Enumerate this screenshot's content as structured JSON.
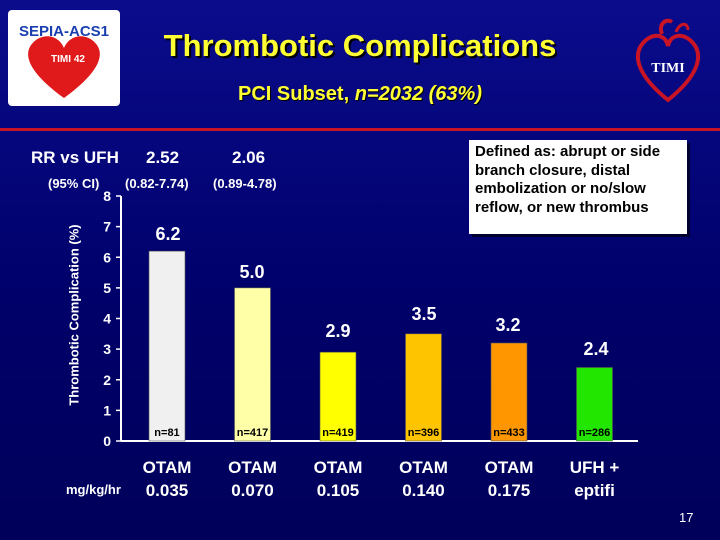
{
  "title": "Thrombotic Complications",
  "subtitle_prefix": "PCI Subset, ",
  "subtitle_n": "n=2032 (63%)",
  "logo_left": {
    "text_top": "SEPIA-ACS1",
    "text_mid": "TIMI 42",
    "icon": "heart-logo"
  },
  "logo_right": {
    "text": "TIMI",
    "icon": "heart-logo"
  },
  "rr": {
    "label": "RR vs UFH",
    "values": [
      "2.52",
      "2.06"
    ]
  },
  "ci": {
    "label": "(95% CI)",
    "values": [
      "(0.82-7.74)",
      "(0.89-4.78)"
    ]
  },
  "definition": "Defined as: abrupt or side branch closure, distal embolization or no/slow reflow, or new thrombus",
  "dose_unit": "mg/kg/hr",
  "page_number": "17",
  "colors": {
    "title": "#ffff33",
    "rule": "#c81424"
  },
  "chart_data": {
    "type": "bar",
    "ylabel": "Thrombotic Complication (%)",
    "ylim": [
      0,
      8
    ],
    "yticks": [
      "0",
      "1",
      "2",
      "3",
      "4",
      "5",
      "6",
      "7",
      "8"
    ],
    "categories": [
      [
        "OTAM",
        "0.035"
      ],
      [
        "OTAM",
        "0.070"
      ],
      [
        "OTAM",
        "0.105"
      ],
      [
        "OTAM",
        "0.140"
      ],
      [
        "OTAM",
        "0.175"
      ],
      [
        "UFH +",
        "eptifi"
      ]
    ],
    "values": [
      6.2,
      5.0,
      2.9,
      3.5,
      3.2,
      2.4
    ],
    "value_labels": [
      "6.2",
      "5.0",
      "2.9",
      "3.5",
      "3.2",
      "2.4"
    ],
    "n_labels": [
      "n=81",
      "n=417",
      "n=419",
      "n=396",
      "n=433",
      "n=286"
    ],
    "bar_colors": [
      "#f0f0f0",
      "#ffffa8",
      "#ffff00",
      "#ffc400",
      "#ff9600",
      "#22e600"
    ],
    "grid": false
  }
}
